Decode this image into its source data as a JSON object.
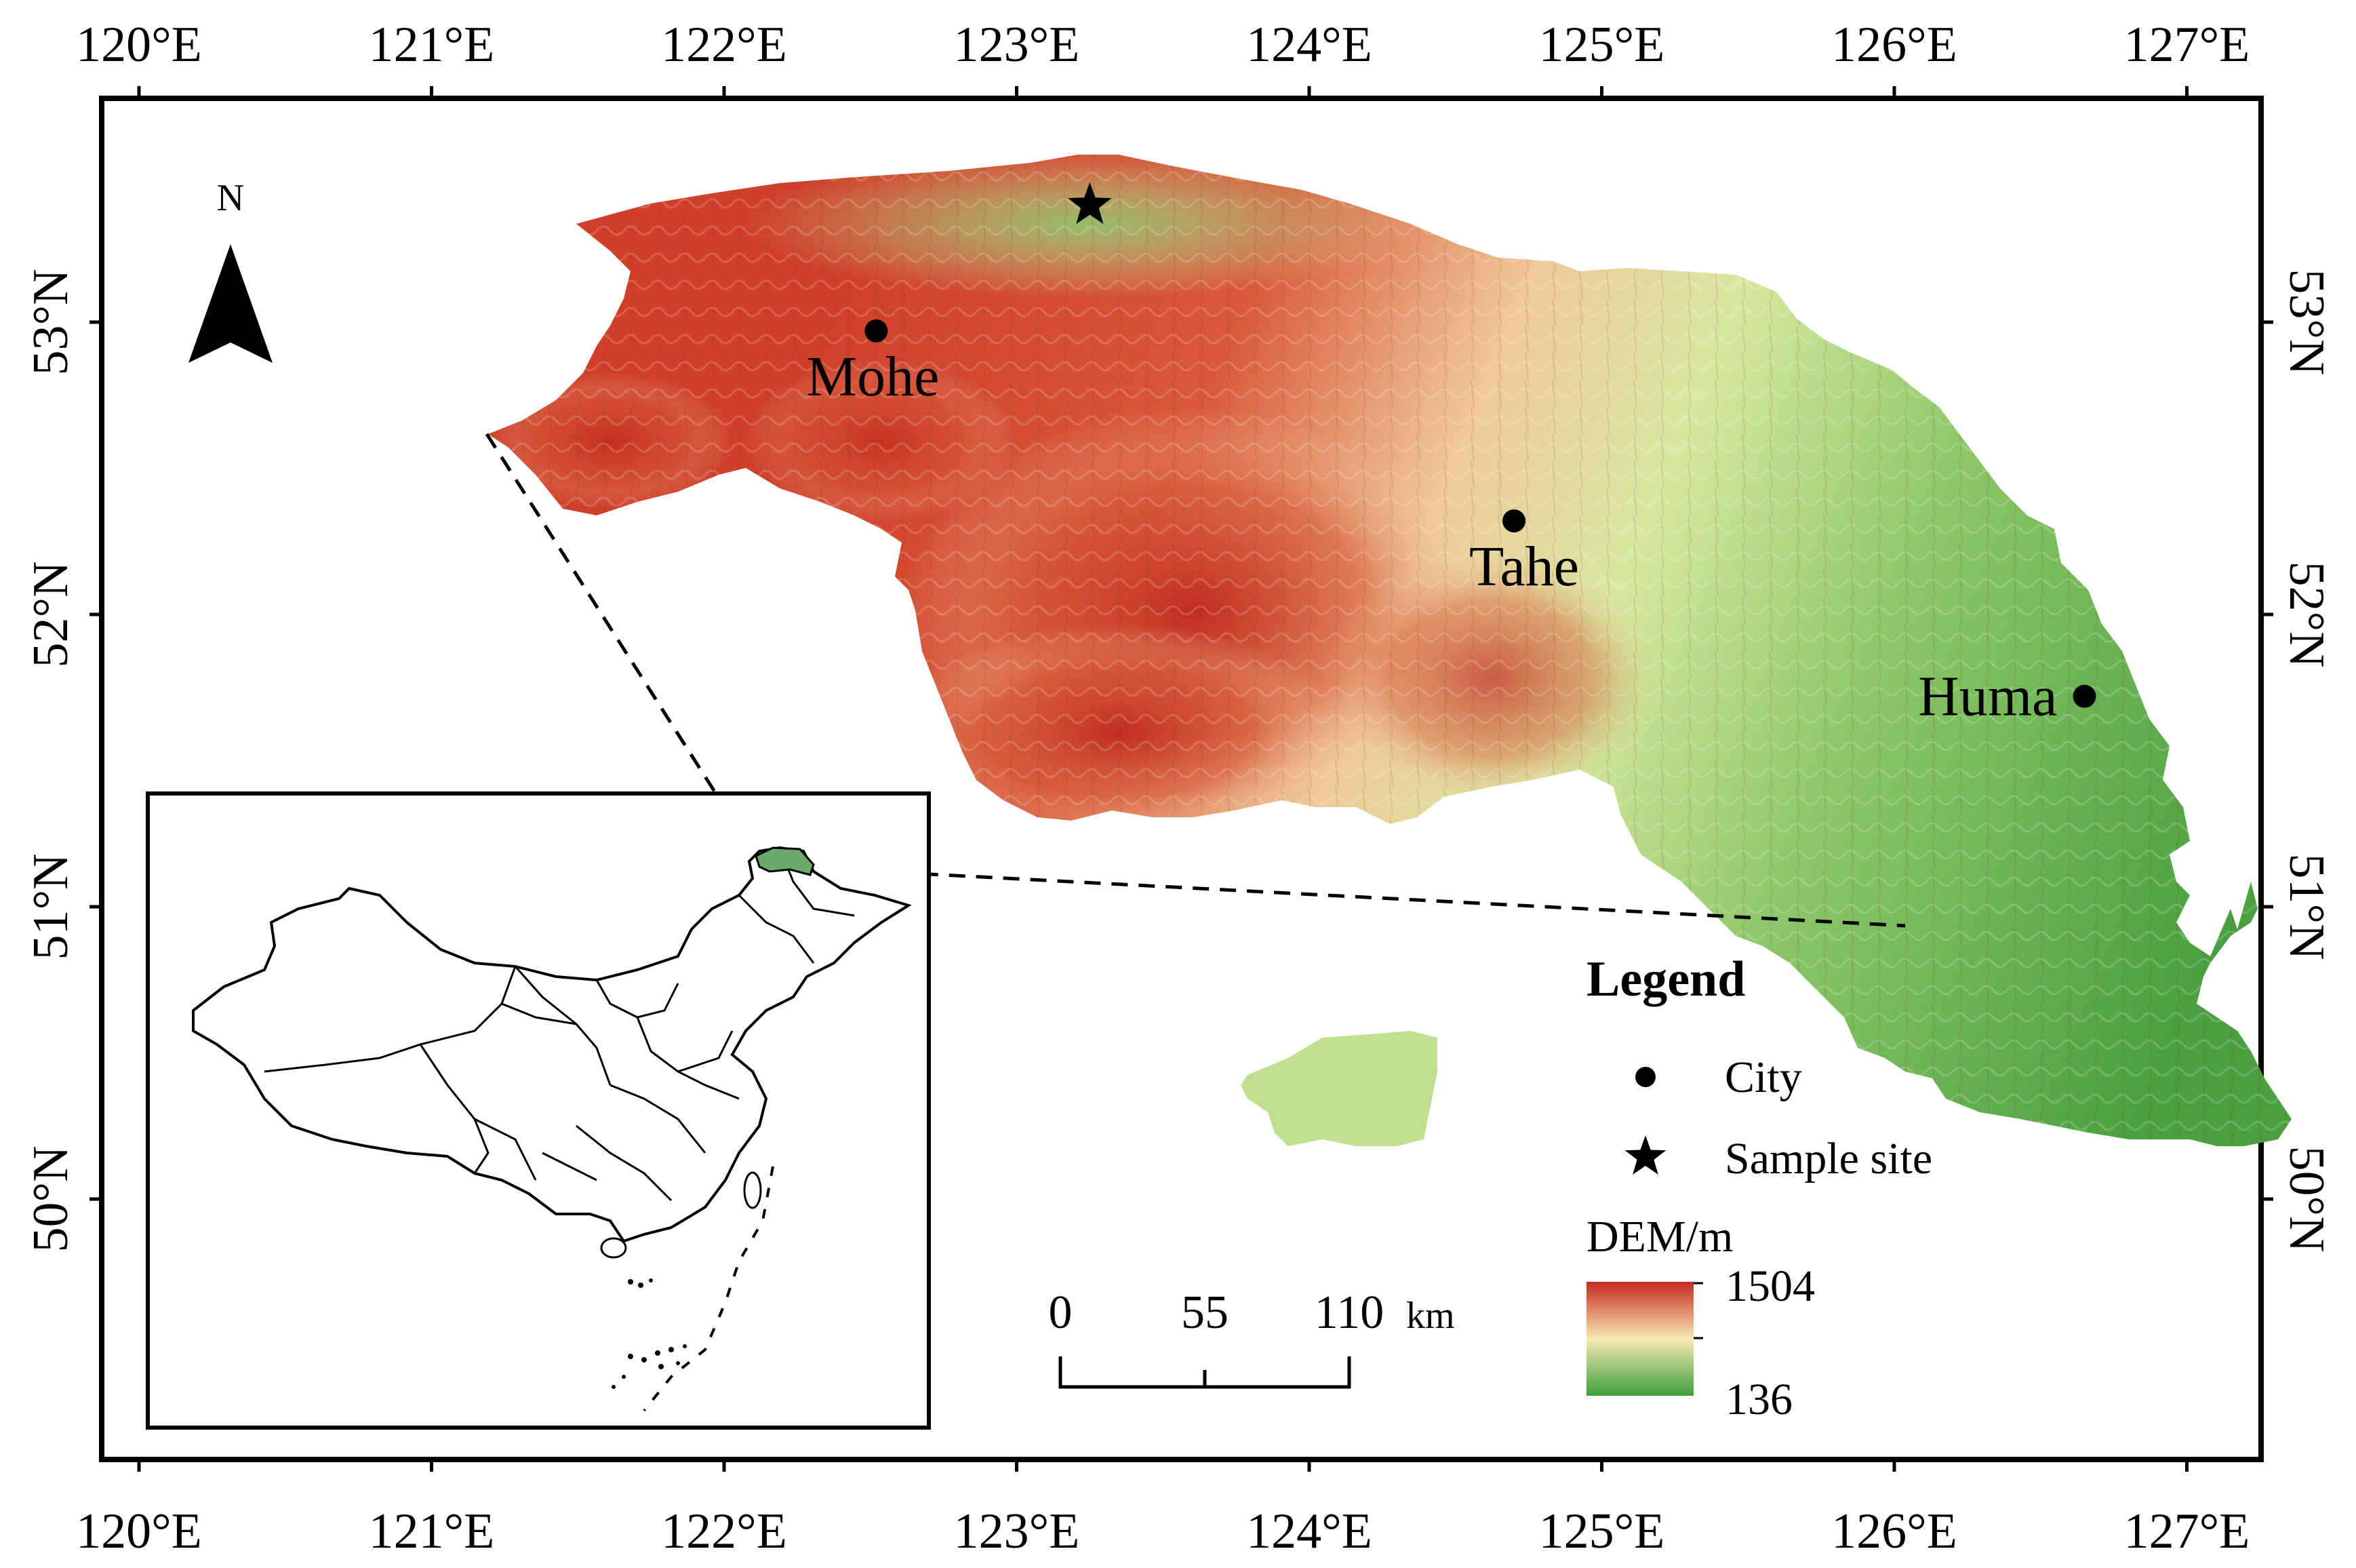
{
  "map": {
    "lon_ticks": [
      "120°E",
      "121°E",
      "122°E",
      "123°E",
      "124°E",
      "125°E",
      "126°E",
      "127°E"
    ],
    "lat_ticks": [
      "53°N",
      "52°N",
      "51°N",
      "50°N"
    ],
    "north_arrow_label": "N",
    "cities": [
      {
        "name": "Mohe",
        "lon": 122.52,
        "lat": 52.97
      },
      {
        "name": "Tahe",
        "lon": 124.7,
        "lat": 52.32
      },
      {
        "name": "Huma",
        "lon": 126.65,
        "lat": 51.72
      }
    ],
    "sample_site": {
      "lon": 123.25,
      "lat": 53.4
    },
    "scale_bar": {
      "labels": [
        "0",
        "55",
        "110"
      ],
      "unit": "km"
    },
    "legend": {
      "title": "Legend",
      "city_label": "City",
      "sample_site_label": "Sample site",
      "dem_title": "DEM/m",
      "dem_max": "1504",
      "dem_min": "136"
    },
    "colors": {
      "dem_high": "#c62a1f",
      "dem_mid": "#f6eab4",
      "dem_low": "#3f9e3a",
      "inset_highlight": "#6aa96a"
    }
  }
}
